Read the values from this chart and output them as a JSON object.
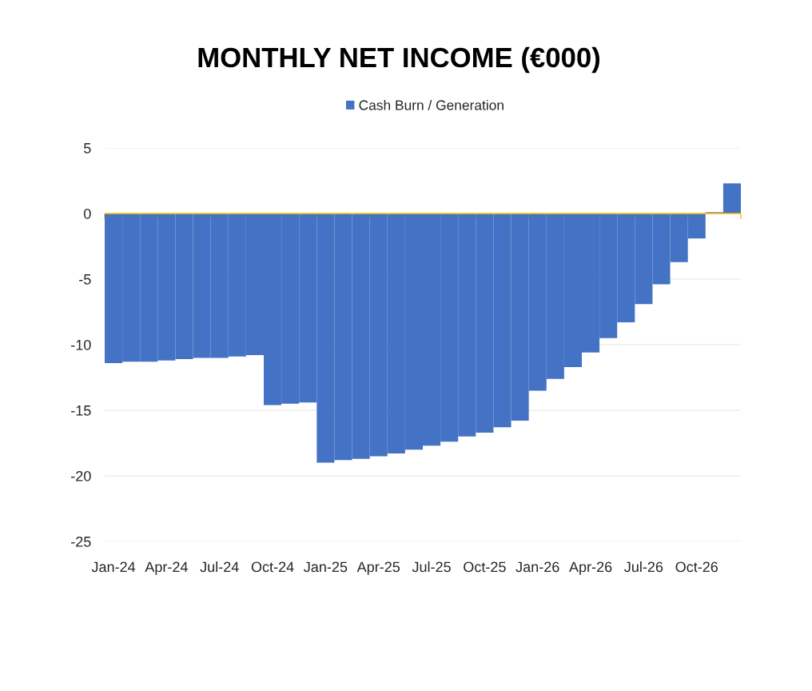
{
  "chart_data": {
    "type": "bar",
    "title": "MONTHLY NET INCOME (€000)",
    "categories": [
      "Jan-24",
      null,
      null,
      "Apr-24",
      null,
      null,
      "Jul-24",
      null,
      null,
      "Oct-24",
      null,
      null,
      "Jan-25",
      null,
      null,
      "Apr-25",
      null,
      null,
      "Jul-25",
      null,
      null,
      "Oct-25",
      null,
      null,
      "Jan-26",
      null,
      null,
      "Apr-26",
      null,
      null,
      "Jul-26",
      null,
      null,
      "Oct-26",
      null,
      null
    ],
    "series": [
      {
        "name": "Cash Burn / Generation",
        "color": "#4472c4",
        "values": [
          -11.4,
          -11.3,
          -11.3,
          -11.2,
          -11.1,
          -11.0,
          -11.0,
          -10.9,
          -10.8,
          -14.6,
          -14.5,
          -14.4,
          -19.0,
          -18.8,
          -18.7,
          -18.5,
          -18.3,
          -18.0,
          -17.7,
          -17.4,
          -17.0,
          -16.7,
          -16.3,
          -15.8,
          -13.5,
          -12.6,
          -11.7,
          -10.6,
          -9.5,
          -8.3,
          -6.9,
          -5.4,
          -3.7,
          -1.9,
          0.1,
          2.3
        ]
      }
    ],
    "ylim": [
      -25,
      5
    ],
    "yticks": [
      -25,
      -20,
      -15,
      -10,
      -5,
      0,
      5
    ],
    "grid": "y",
    "legend": "top",
    "ref_lines": [
      {
        "axis": "y",
        "value": 0,
        "color": "#ffc000"
      }
    ]
  }
}
